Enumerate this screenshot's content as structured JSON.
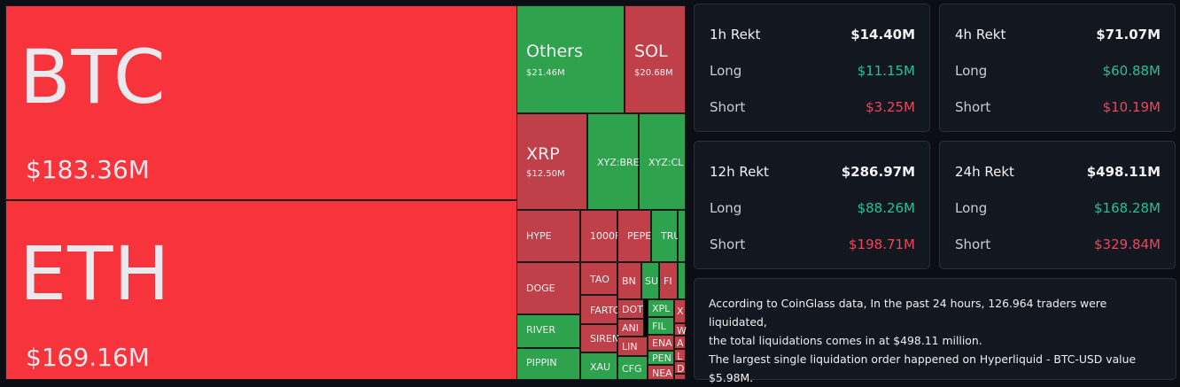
{
  "treemap": {
    "tiles": [
      {
        "name": "BTC",
        "value": "$183.36M"
      },
      {
        "name": "ETH",
        "value": "$169.16M"
      },
      {
        "name": "Others",
        "value": "$21.46M"
      },
      {
        "name": "SOL",
        "value": "$20.68M"
      },
      {
        "name": "XRP",
        "value": "$12.50M"
      },
      {
        "name": "XYZ:BRE",
        "value": ""
      },
      {
        "name": "XYZ:CL",
        "value": ""
      },
      {
        "name": "HYPE",
        "value": ""
      },
      {
        "name": "1000F",
        "value": ""
      },
      {
        "name": "PEPE",
        "value": ""
      },
      {
        "name": "TRU",
        "value": ""
      },
      {
        "name": "DOGE",
        "value": ""
      },
      {
        "name": "TAO",
        "value": ""
      },
      {
        "name": "BN",
        "value": ""
      },
      {
        "name": "SU",
        "value": ""
      },
      {
        "name": "FI",
        "value": ""
      },
      {
        "name": "FARTC",
        "value": ""
      },
      {
        "name": "DOT",
        "value": ""
      },
      {
        "name": "XPL",
        "value": ""
      },
      {
        "name": "X",
        "value": ""
      },
      {
        "name": "RIVER",
        "value": ""
      },
      {
        "name": "ANI",
        "value": ""
      },
      {
        "name": "FIL",
        "value": ""
      },
      {
        "name": "W",
        "value": ""
      },
      {
        "name": "SIREN",
        "value": ""
      },
      {
        "name": "ENA",
        "value": ""
      },
      {
        "name": "A",
        "value": ""
      },
      {
        "name": "LIN",
        "value": ""
      },
      {
        "name": "AR",
        "value": ""
      },
      {
        "name": "L",
        "value": ""
      },
      {
        "name": "PIPPIN",
        "value": ""
      },
      {
        "name": "XAU",
        "value": ""
      },
      {
        "name": "PEN",
        "value": ""
      },
      {
        "name": "D",
        "value": ""
      },
      {
        "name": "CFG",
        "value": ""
      },
      {
        "name": "NEA",
        "value": ""
      }
    ]
  },
  "stats": [
    {
      "period": "1h Rekt",
      "total": "$14.40M",
      "long_label": "Long",
      "long": "$11.15M",
      "short_label": "Short",
      "short": "$3.25M"
    },
    {
      "period": "4h Rekt",
      "total": "$71.07M",
      "long_label": "Long",
      "long": "$60.88M",
      "short_label": "Short",
      "short": "$10.19M"
    },
    {
      "period": "12h Rekt",
      "total": "$286.97M",
      "long_label": "Long",
      "long": "$88.26M",
      "short_label": "Short",
      "short": "$198.71M"
    },
    {
      "period": "24h Rekt",
      "total": "$498.11M",
      "long_label": "Long",
      "long": "$168.28M",
      "short_label": "Short",
      "short": "$329.84M"
    }
  ],
  "note": {
    "line1": "According to CoinGlass data, In the past 24 hours, 126.964 traders were liquidated,",
    "line2": "the total liquidations comes in at $498.11 million.",
    "line3": "The largest single liquidation order happened on Hyperliquid - BTC-USD value",
    "line4": "$5.98M."
  },
  "colors": {
    "long": "#22c29a",
    "short": "#f2445a",
    "tile_red": "#c0404a",
    "tile_bright": "#f7343b",
    "tile_green": "#2fa24e"
  }
}
